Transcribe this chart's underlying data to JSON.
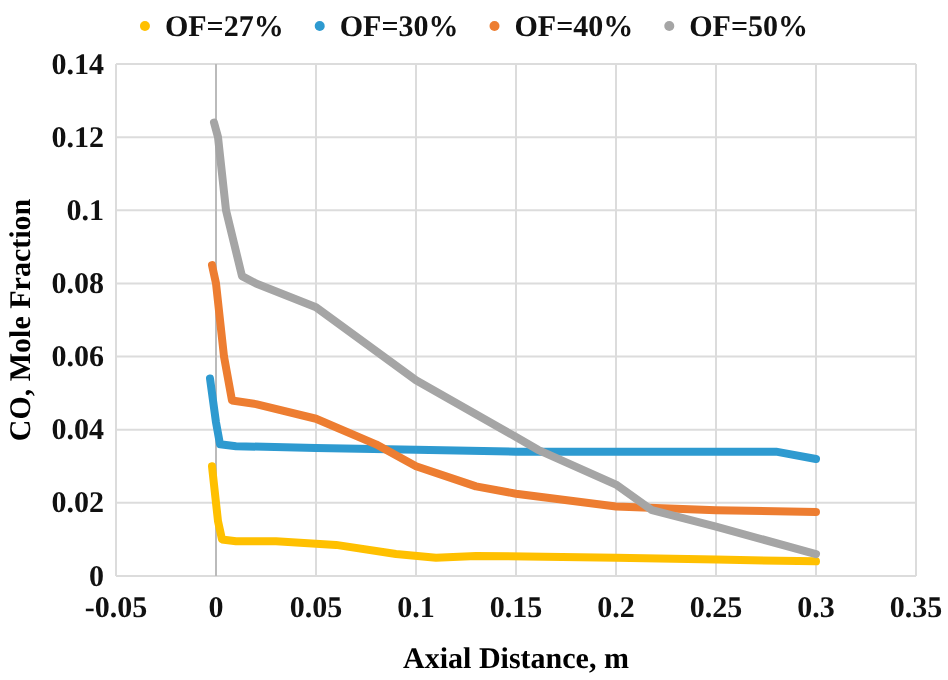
{
  "chart_data": {
    "type": "line",
    "xlabel": "Axial Distance, m",
    "ylabel": "CO, Mole Fraction",
    "xlim": [
      -0.05,
      0.35
    ],
    "xticks": [
      -0.05,
      0,
      0.05,
      0.1,
      0.15,
      0.2,
      0.25,
      0.3,
      0.35
    ],
    "ylim": [
      0,
      0.14
    ],
    "yticks": [
      0,
      0.02,
      0.04,
      0.06,
      0.08,
      0.1,
      0.12,
      0.14
    ],
    "grid": true,
    "legend": "top",
    "marker": "none",
    "series": [
      {
        "name": "OF=27%",
        "color": "#ffc000",
        "x": [
          -0.002,
          0.001,
          0.003,
          0.01,
          0.03,
          0.06,
          0.09,
          0.11,
          0.13,
          0.2,
          0.25,
          0.3
        ],
        "values": [
          0.03,
          0.015,
          0.01,
          0.0095,
          0.0095,
          0.0085,
          0.006,
          0.005,
          0.0055,
          0.005,
          0.0045,
          0.004
        ]
      },
      {
        "name": "OF=30%",
        "color": "#2e9ad0",
        "x": [
          -0.003,
          0,
          0.002,
          0.01,
          0.05,
          0.1,
          0.15,
          0.2,
          0.28,
          0.3
        ],
        "values": [
          0.054,
          0.042,
          0.036,
          0.0355,
          0.035,
          0.0345,
          0.034,
          0.034,
          0.034,
          0.032
        ]
      },
      {
        "name": "OF=40%",
        "color": "#ed7d31",
        "x": [
          -0.002,
          0,
          0.004,
          0.008,
          0.02,
          0.05,
          0.08,
          0.1,
          0.13,
          0.15,
          0.2,
          0.25,
          0.3
        ],
        "values": [
          0.085,
          0.08,
          0.06,
          0.048,
          0.047,
          0.043,
          0.036,
          0.03,
          0.0245,
          0.0225,
          0.019,
          0.018,
          0.0175
        ]
      },
      {
        "name": "OF=50%",
        "color": "#a5a5a5",
        "x": [
          -0.001,
          0.001,
          0.005,
          0.013,
          0.02,
          0.05,
          0.1,
          0.15,
          0.161,
          0.2,
          0.218,
          0.25,
          0.3
        ],
        "values": [
          0.124,
          0.12,
          0.1,
          0.082,
          0.08,
          0.0735,
          0.0535,
          0.038,
          0.0345,
          0.025,
          0.018,
          0.0135,
          0.006
        ]
      }
    ]
  }
}
